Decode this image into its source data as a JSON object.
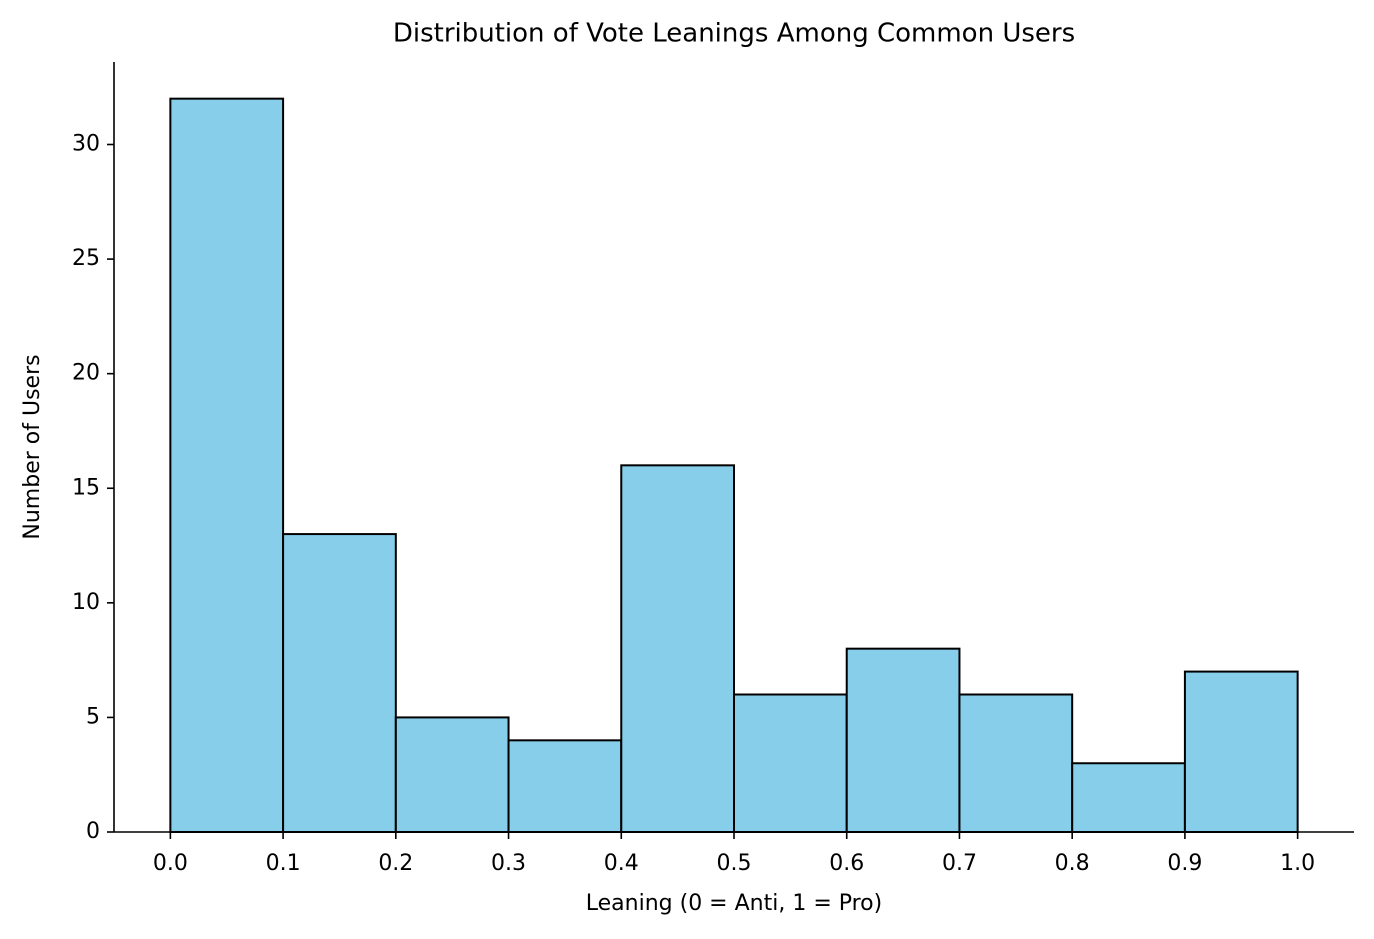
{
  "chart_data": {
    "type": "histogram",
    "title": "Distribution of Vote Leanings Among Common Users",
    "x_label": "Leaning (0 = Anti, 1 = Pro)",
    "y_label": "Number of Users",
    "bins": [
      0,
      0.1,
      0.2,
      0.3,
      0.4,
      0.5,
      0.6,
      0.7,
      0.8,
      0.9,
      1
    ],
    "values": [
      32,
      13,
      5,
      4,
      16,
      6,
      8,
      6,
      3,
      7
    ],
    "color": "#87ceeb",
    "edgecolor": "#000000",
    "xlim": [
      -0.05,
      1.05
    ],
    "xticks": [
      {
        "value": 0,
        "label": "0.0"
      },
      0.1,
      0.2,
      0.3,
      0.4,
      0.5,
      0.6,
      0.7,
      0.8,
      0.9,
      {
        "value": 1,
        "label": "1.0"
      }
    ],
    "ylim": [
      0,
      33.6
    ],
    "yticks": [
      0,
      5,
      10,
      15,
      20,
      25,
      30
    ],
    "grid": false
  }
}
